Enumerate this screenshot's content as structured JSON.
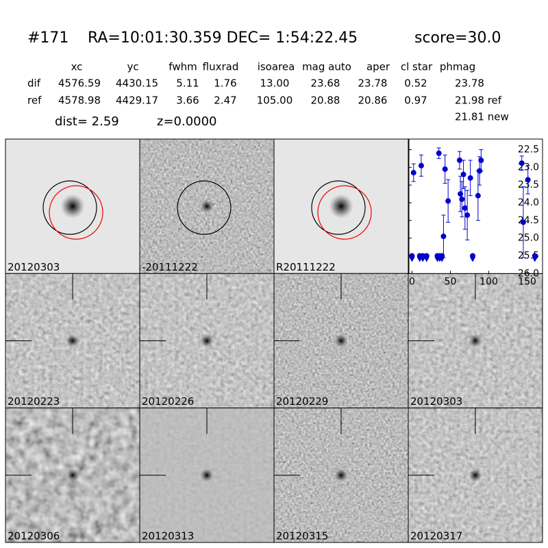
{
  "header": {
    "id": "#171",
    "coords": "RA=10:01:30.359 DEC= 1:54:22.45",
    "score": "score=30.0"
  },
  "table": {
    "columns": [
      "xc",
      "yc",
      "fwhm",
      "fluxrad",
      "isoarea",
      "mag auto",
      "aper",
      "cl star",
      "phmag"
    ],
    "rows": [
      {
        "label": "dif",
        "cells": [
          "4576.59",
          "4430.15",
          "5.11",
          "1.76",
          "13.00",
          "23.68",
          "23.78",
          "0.52",
          "23.78"
        ]
      },
      {
        "label": "ref",
        "cells": [
          "4578.98",
          "4429.17",
          "3.66",
          "2.47",
          "105.00",
          "20.88",
          "20.86",
          "0.97",
          "21.98 ref"
        ]
      }
    ],
    "extra": "21.81 new"
  },
  "info": {
    "dist": "dist=  2.59",
    "z": "z=0.0000"
  },
  "panels": [
    {
      "label": "20120303",
      "color": "#000000"
    },
    {
      "label": "-20111222",
      "color": "#000000"
    },
    {
      "label": "R20111222",
      "color": "#000000"
    },
    {
      "label": "20120223",
      "color": "#000000"
    },
    {
      "label": "20120226",
      "color": "#000000"
    },
    {
      "label": "20120229",
      "color": "#000000"
    },
    {
      "label": "20120303",
      "color": "#ff0000"
    },
    {
      "label": "20120306",
      "color": "#000000"
    },
    {
      "label": "20120313",
      "color": "#000000"
    },
    {
      "label": "20120315",
      "color": "#000000"
    },
    {
      "label": "20120317",
      "color": "#000000"
    }
  ],
  "chart_data": {
    "type": "errorbar",
    "color": "#0000cc",
    "x": [
      2,
      12,
      35,
      41,
      43,
      47,
      62,
      63,
      65,
      67,
      69,
      72,
      76,
      86,
      88,
      90,
      143,
      145,
      151
    ],
    "y": [
      23.15,
      22.95,
      22.6,
      24.95,
      23.05,
      23.95,
      22.8,
      23.75,
      23.9,
      23.2,
      24.15,
      24.35,
      23.3,
      23.8,
      23.1,
      22.8,
      22.88,
      24.55,
      23.35
    ],
    "yerr": [
      0.25,
      0.3,
      0.15,
      0.6,
      0.4,
      0.6,
      0.25,
      0.5,
      0.5,
      0.4,
      0.6,
      0.7,
      0.5,
      0.7,
      0.4,
      0.3,
      0.2,
      1.0,
      0.4
    ],
    "limit_x": [
      0,
      10,
      14,
      19,
      33,
      36,
      39,
      79,
      160
    ],
    "limit_y": [
      25.5,
      25.5,
      25.5,
      25.5,
      25.5,
      25.5,
      25.5,
      25.5,
      25.5
    ],
    "xlim": [
      -4,
      170
    ],
    "ylim": [
      26.0,
      22.2
    ],
    "inverted_y": true,
    "xticks": [
      0,
      50,
      100,
      150
    ],
    "yticks": [
      22.5,
      {
        "value": 23,
        "label": "23.0"
      },
      23.5,
      {
        "value": 24,
        "label": "24.0"
      },
      24.5,
      {
        "value": 25,
        "label": "25.0"
      },
      25.5,
      {
        "value": 26,
        "label": "26.0"
      }
    ]
  }
}
